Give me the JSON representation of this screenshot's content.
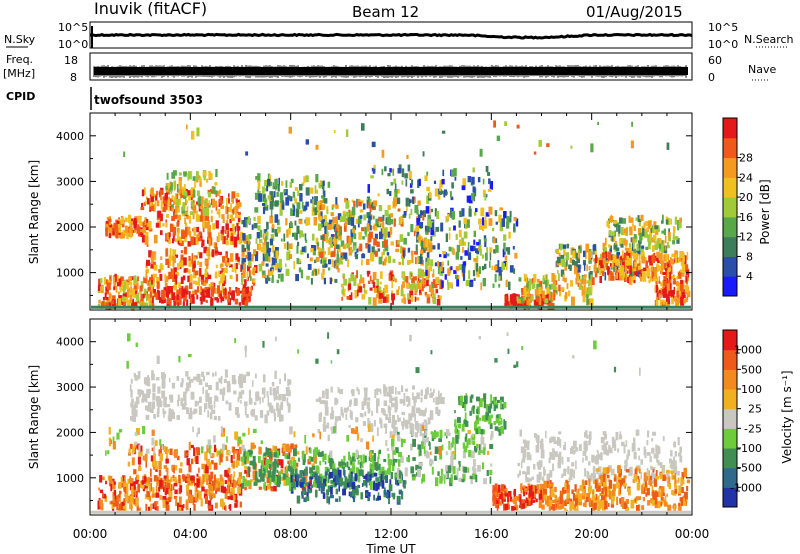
{
  "header": {
    "radar": "Inuvik (fitACF)",
    "beam": "Beam 12",
    "date": "01/Aug/2015"
  },
  "noise_panel": {
    "left_label": "N.Sky",
    "right_label": "N.Search",
    "ticks": [
      "10^5",
      "10^0"
    ]
  },
  "freq_panel": {
    "left_label_1": "Freq.",
    "left_label_2": "[MHz]",
    "right_label": "Nave",
    "left_ticks": [
      "18",
      "8"
    ],
    "right_ticks": [
      "60",
      "0"
    ],
    "cpid_label": "CPID",
    "cpid_value": "twofsound 3503"
  },
  "chart_data": [
    {
      "type": "heatmap",
      "title": "",
      "xlabel": "Time UT",
      "ylabel": "Slant Range [km]",
      "xlim": [
        0,
        24
      ],
      "ylim": [
        180,
        4500
      ],
      "x_ticks": [
        "00:00",
        "04:00",
        "08:00",
        "12:00",
        "16:00",
        "20:00",
        "00:00"
      ],
      "y_ticks": [
        "1000",
        "2000",
        "3000",
        "4000"
      ],
      "colorbar": {
        "label": "Power [dB]",
        "ticks": [
          "4",
          "8",
          "12",
          "16",
          "20",
          "24",
          "28"
        ],
        "colors": [
          "#1a1aff",
          "#2a4fa8",
          "#3d7d5c",
          "#58a84a",
          "#9fcb3a",
          "#f0c020",
          "#f59a20",
          "#ef5a1a",
          "#e41a1a"
        ]
      }
    },
    {
      "type": "heatmap",
      "title": "",
      "xlabel": "Time UT",
      "ylabel": "Slant Range [km]",
      "xlim": [
        0,
        24
      ],
      "ylim": [
        180,
        4500
      ],
      "x_ticks": [
        "00:00",
        "04:00",
        "08:00",
        "12:00",
        "16:00",
        "20:00",
        "00:00"
      ],
      "y_ticks": [
        "1000",
        "2000",
        "3000",
        "4000"
      ],
      "colorbar": {
        "label": "Velocity [m s⁻¹]",
        "ticks": [
          "1000",
          "500",
          "100",
          "25",
          "-25",
          "-100",
          "-500",
          "-1000"
        ],
        "colors": [
          "#2233aa",
          "#2f6a8c",
          "#3f8f55",
          "#6ccc3a",
          "#c8c8c0",
          "#f0b020",
          "#f28a20",
          "#ee5a1a",
          "#e41a1a"
        ]
      }
    }
  ],
  "colors": {
    "groundscatter": "#999999",
    "noise_trace": "#000000"
  }
}
